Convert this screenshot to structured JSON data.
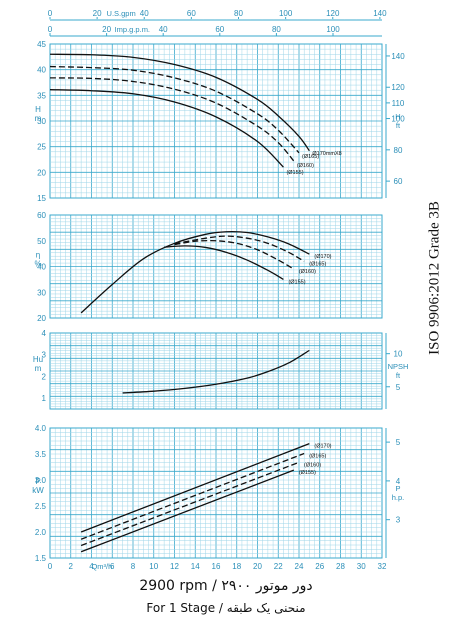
{
  "caption_rpm": "2900 rpm / دور موتور ۲۹۰۰",
  "caption_stage": "For 1 Stage / منحنی یک طبقه",
  "side_label": "ISO 9906:2012 Grade 3B",
  "colors": {
    "grid": "#3aa9cc",
    "grid_fine": "#9fd6e8",
    "axis_text": "#2b8fb8",
    "bg": "#ffffff",
    "curve": "#111111"
  },
  "chart_data": [
    {
      "type": "line",
      "panel": "head",
      "top_axes": {
        "us_gpm": {
          "label": "U.S.gpm",
          "ticks": [
            0,
            20,
            40,
            60,
            80,
            100,
            120,
            140
          ]
        },
        "imp_gpm": {
          "label": "Imp.g.p.m.",
          "ticks": [
            0,
            20,
            40,
            60,
            80,
            100
          ]
        }
      },
      "ylabel": "H m",
      "ylim": [
        15,
        45
      ],
      "yticks": [
        15,
        20,
        25,
        30,
        35,
        40,
        45
      ],
      "ylabel_right": "H ft",
      "yticks_right": [
        60,
        80,
        100,
        110,
        120,
        140
      ],
      "xlim": [
        0,
        32
      ],
      "series": [
        {
          "name": "Ø170mmX8",
          "dash": false,
          "x": [
            0,
            4,
            8,
            12,
            16,
            20,
            22,
            24,
            25
          ],
          "y": [
            43.0,
            42.9,
            42.4,
            41.0,
            38.5,
            34.2,
            31.0,
            27.0,
            24.2
          ]
        },
        {
          "name": "(Ø165)",
          "dash": true,
          "x": [
            0,
            4,
            8,
            12,
            16,
            20,
            22,
            24
          ],
          "y": [
            40.6,
            40.4,
            39.9,
            38.4,
            35.8,
            31.4,
            28.2,
            23.8
          ]
        },
        {
          "name": "(Ø160)",
          "dash": true,
          "x": [
            0,
            4,
            8,
            12,
            16,
            20,
            22,
            23.5
          ],
          "y": [
            38.4,
            38.3,
            37.7,
            36.2,
            33.5,
            29.0,
            25.8,
            22.2
          ]
        },
        {
          "name": "(Ø155)",
          "dash": false,
          "x": [
            0,
            4,
            8,
            12,
            16,
            20,
            22.5
          ],
          "y": [
            36.1,
            35.9,
            35.3,
            33.7,
            30.8,
            26.0,
            21.0
          ]
        }
      ]
    },
    {
      "type": "line",
      "panel": "efficiency",
      "ylabel": "η %",
      "ylim": [
        20,
        60
      ],
      "yticks": [
        20,
        30,
        40,
        50,
        60
      ],
      "xlim": [
        0,
        32
      ],
      "series": [
        {
          "name": "(Ø170)",
          "dash": false,
          "x": [
            3,
            6,
            9,
            12,
            15,
            17,
            19,
            21,
            23,
            25
          ],
          "y": [
            22,
            33,
            43,
            49,
            52.5,
            53.5,
            53.2,
            51.5,
            48.8,
            44.8
          ]
        },
        {
          "name": "(Ø165)",
          "dash": true,
          "x": [
            12,
            15,
            17,
            19,
            21,
            23,
            24.5
          ],
          "y": [
            48.8,
            51.0,
            51.8,
            51.0,
            49.0,
            45.5,
            42.0
          ]
        },
        {
          "name": "(Ø160)",
          "dash": true,
          "x": [
            12,
            14,
            16,
            18,
            20,
            22,
            23.5
          ],
          "y": [
            48.5,
            49.8,
            50.0,
            49.0,
            46.5,
            42.5,
            39.0
          ]
        },
        {
          "name": "(Ø155)",
          "dash": false,
          "x": [
            11,
            13,
            15,
            17,
            19,
            21,
            22.5
          ],
          "y": [
            47.5,
            48.0,
            47.4,
            45.5,
            42.5,
            38.5,
            35.0
          ]
        }
      ]
    },
    {
      "type": "line",
      "panel": "npsh",
      "ylabel": "Hu m",
      "ylim": [
        0.5,
        4
      ],
      "yticks": [
        1,
        2,
        3,
        4
      ],
      "ylabel_right": "NPSH ft",
      "yticks_right": [
        5,
        10
      ],
      "xlim": [
        0,
        32
      ],
      "series": [
        {
          "name": "NPSH",
          "dash": false,
          "x": [
            7,
            10,
            13,
            16,
            19,
            21,
            23,
            25
          ],
          "y": [
            1.24,
            1.32,
            1.45,
            1.64,
            1.92,
            2.22,
            2.62,
            3.2
          ]
        }
      ]
    },
    {
      "type": "line",
      "panel": "power",
      "ylabel": "P kW",
      "ylim": [
        1.5,
        4.0
      ],
      "yticks": [
        1.5,
        2.0,
        2.5,
        3.0,
        3.5,
        4.0
      ],
      "ylabel_right": "P h.p.",
      "yticks_right": [
        3,
        4,
        5
      ],
      "xlabel": "Qm³/h",
      "xlim": [
        0,
        32
      ],
      "xticks": [
        0,
        2,
        4,
        6,
        8,
        10,
        12,
        14,
        16,
        18,
        20,
        22,
        24,
        26,
        28,
        30,
        32
      ],
      "series": [
        {
          "name": "(Ø170)",
          "dash": false,
          "x": [
            3,
            25
          ],
          "y": [
            2.0,
            3.7
          ]
        },
        {
          "name": "(Ø165)",
          "dash": true,
          "x": [
            3,
            24.5
          ],
          "y": [
            1.86,
            3.51
          ]
        },
        {
          "name": "(Ø160)",
          "dash": true,
          "x": [
            3,
            24
          ],
          "y": [
            1.74,
            3.34
          ]
        },
        {
          "name": "(Ø155)",
          "dash": false,
          "x": [
            3,
            23.5
          ],
          "y": [
            1.62,
            3.19
          ]
        }
      ]
    }
  ]
}
